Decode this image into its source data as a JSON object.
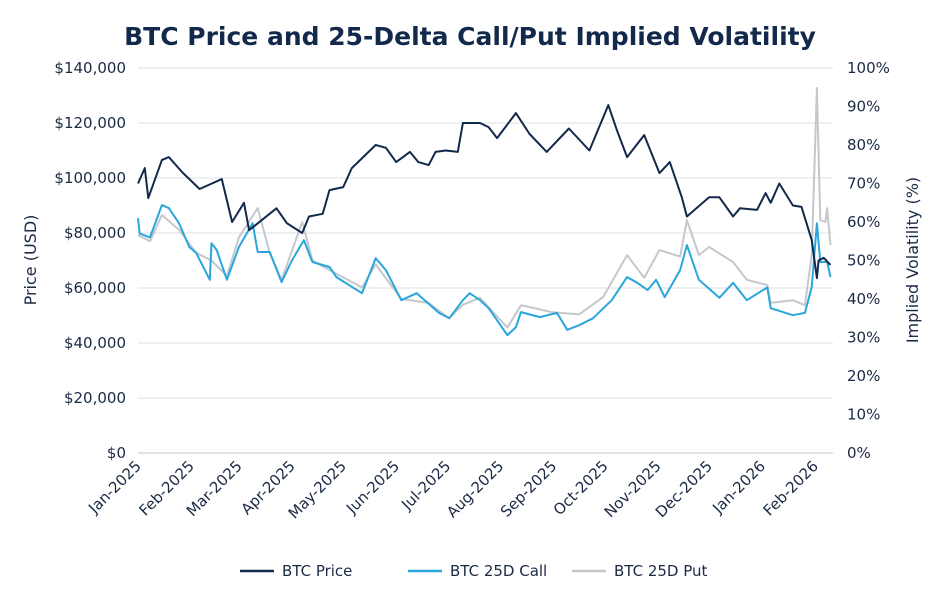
{
  "chart_data": {
    "type": "line",
    "title": "BTC Price and 25-Delta Call/Put Implied Volatility",
    "ylabel": "Price (USD)",
    "y2label": "Implied Volatility (%)",
    "ylim": [
      0,
      140000
    ],
    "y2lim": [
      0,
      100
    ],
    "yticks": [
      "$0",
      "$20,000",
      "$40,000",
      "$60,000",
      "$80,000",
      "$100,000",
      "$120,000",
      "$140,000"
    ],
    "y2ticks": [
      "0%",
      "10%",
      "20%",
      "30%",
      "40%",
      "50%",
      "60%",
      "70%",
      "80%",
      "90%",
      "100%"
    ],
    "xticks": [
      "Jan-2025",
      "Feb-2025",
      "Mar-2025",
      "Apr-2025",
      "May-2025",
      "Jun-2025",
      "Jul-2025",
      "Aug-2025",
      "Sep-2025",
      "Oct-2025",
      "Nov-2025",
      "Dec-2025",
      "Jan-2026",
      "Feb-2026"
    ],
    "grid": "horizontal",
    "legend_position": "bottom",
    "series": [
      {
        "name": "BTC Price",
        "axis": "left",
        "color": "#13294b",
        "x": [
          "2025-01-01",
          "2025-01-05",
          "2025-01-07",
          "2025-01-15",
          "2025-01-19",
          "2025-01-27",
          "2025-02-06",
          "2025-02-19",
          "2025-02-25",
          "2025-03-04",
          "2025-03-07",
          "2025-03-23",
          "2025-03-29",
          "2025-04-07",
          "2025-04-11",
          "2025-04-19",
          "2025-04-23",
          "2025-05-01",
          "2025-05-06",
          "2025-05-20",
          "2025-05-26",
          "2025-06-01",
          "2025-06-09",
          "2025-06-14",
          "2025-06-20",
          "2025-06-24",
          "2025-06-30",
          "2025-07-07",
          "2025-07-10",
          "2025-07-20",
          "2025-07-25",
          "2025-07-30",
          "2025-08-10",
          "2025-08-18",
          "2025-08-28",
          "2025-09-10",
          "2025-09-22",
          "2025-10-03",
          "2025-10-08",
          "2025-10-14",
          "2025-10-24",
          "2025-11-02",
          "2025-11-08",
          "2025-11-15",
          "2025-11-18",
          "2025-12-01",
          "2025-12-07",
          "2025-12-15",
          "2025-12-19",
          "2025-12-29",
          "2026-01-03",
          "2026-01-06",
          "2026-01-11",
          "2026-01-19",
          "2026-01-24",
          "2026-01-30",
          "2026-02-02",
          "2026-02-03",
          "2026-02-06",
          "2026-02-10"
        ],
        "values": [
          98000,
          103600,
          92700,
          106500,
          107600,
          102000,
          96000,
          99600,
          84000,
          91000,
          81000,
          89000,
          83600,
          80000,
          86000,
          87000,
          95600,
          96700,
          103600,
          112000,
          111000,
          105800,
          109500,
          105800,
          104700,
          109500,
          110000,
          109500,
          120000,
          120000,
          118500,
          114500,
          123600,
          116000,
          109500,
          118000,
          110000,
          126500,
          117500,
          107600,
          115600,
          101800,
          105800,
          93000,
          86000,
          93000,
          93000,
          86000,
          89000,
          88400,
          94500,
          91000,
          98000,
          90000,
          89500,
          77500,
          63600,
          70000,
          71000,
          68400
        ]
      },
      {
        "name": "BTC 25D Call",
        "axis": "right",
        "color": "#2aa6dc",
        "x": [
          "2025-01-01",
          "2025-01-02",
          "2025-01-08",
          "2025-01-15",
          "2025-01-19",
          "2025-01-25",
          "2025-01-31",
          "2025-02-04",
          "2025-02-12",
          "2025-02-13",
          "2025-02-16",
          "2025-02-22",
          "2025-03-01",
          "2025-03-09",
          "2025-03-12",
          "2025-03-19",
          "2025-03-26",
          "2025-04-01",
          "2025-04-08",
          "2025-04-13",
          "2025-04-23",
          "2025-04-27",
          "2025-05-12",
          "2025-05-20",
          "2025-05-26",
          "2025-06-04",
          "2025-06-13",
          "2025-06-26",
          "2025-07-02",
          "2025-07-10",
          "2025-07-14",
          "2025-07-20",
          "2025-07-25",
          "2025-07-27",
          "2025-08-05",
          "2025-08-10",
          "2025-08-13",
          "2025-08-24",
          "2025-09-03",
          "2025-09-09",
          "2025-09-16",
          "2025-09-24",
          "2025-10-05",
          "2025-10-14",
          "2025-10-20",
          "2025-10-26",
          "2025-10-31",
          "2025-11-05",
          "2025-11-14",
          "2025-11-18",
          "2025-11-25",
          "2025-12-07",
          "2025-12-15",
          "2025-12-23",
          "2026-01-04",
          "2026-01-06",
          "2026-01-19",
          "2026-01-26",
          "2026-01-30",
          "2026-02-02",
          "2026-02-04",
          "2026-02-08",
          "2026-02-10"
        ],
        "values": [
          61,
          57,
          56,
          64.4,
          63.6,
          59.7,
          53.5,
          52,
          45,
          54.5,
          52.7,
          45,
          53.5,
          59.7,
          52.2,
          52.2,
          44.4,
          50,
          55.3,
          49.6,
          48.3,
          45.7,
          41.5,
          50.6,
          47.5,
          39.7,
          41.5,
          36.4,
          35,
          39.7,
          41.5,
          39.7,
          37.6,
          36.4,
          30.6,
          32.7,
          36.6,
          35.3,
          36.4,
          32,
          33.2,
          35,
          39.7,
          45.7,
          44.2,
          42.3,
          45,
          40.5,
          47.5,
          54,
          45,
          40.3,
          44.2,
          39.7,
          43,
          37.6,
          35.8,
          36.4,
          43,
          59.7,
          49.6,
          49.6,
          45.7
        ]
      },
      {
        "name": "BTC 25D Put",
        "axis": "right",
        "color": "#c4c8cc",
        "x": [
          "2025-01-01",
          "2025-01-08",
          "2025-01-15",
          "2025-01-25",
          "2025-02-04",
          "2025-02-13",
          "2025-02-22",
          "2025-03-01",
          "2025-03-12",
          "2025-03-19",
          "2025-03-26",
          "2025-04-07",
          "2025-04-13",
          "2025-04-23",
          "2025-05-12",
          "2025-05-20",
          "2025-06-04",
          "2025-06-20",
          "2025-07-02",
          "2025-07-10",
          "2025-07-20",
          "2025-08-05",
          "2025-08-13",
          "2025-08-31",
          "2025-09-16",
          "2025-09-30",
          "2025-10-14",
          "2025-10-24",
          "2025-11-02",
          "2025-11-14",
          "2025-11-18",
          "2025-11-25",
          "2025-12-01",
          "2025-12-15",
          "2025-12-23",
          "2026-01-04",
          "2026-01-06",
          "2026-01-19",
          "2026-01-26",
          "2026-01-30",
          "2026-02-02",
          "2026-02-04",
          "2026-02-07",
          "2026-02-08",
          "2026-02-10"
        ],
        "values": [
          56.6,
          55,
          61.8,
          58,
          52,
          50,
          46,
          56,
          63.6,
          52,
          45,
          60,
          50,
          47.5,
          43,
          49,
          40,
          39,
          35,
          38.5,
          40.3,
          32.6,
          38.4,
          36.6,
          36,
          40.5,
          51.4,
          45.5,
          52.7,
          51,
          60.5,
          51.4,
          53.5,
          49.6,
          45,
          43.6,
          39,
          39.7,
          38.4,
          51.4,
          94.8,
          60.5,
          60,
          63.6,
          54
        ]
      }
    ]
  }
}
